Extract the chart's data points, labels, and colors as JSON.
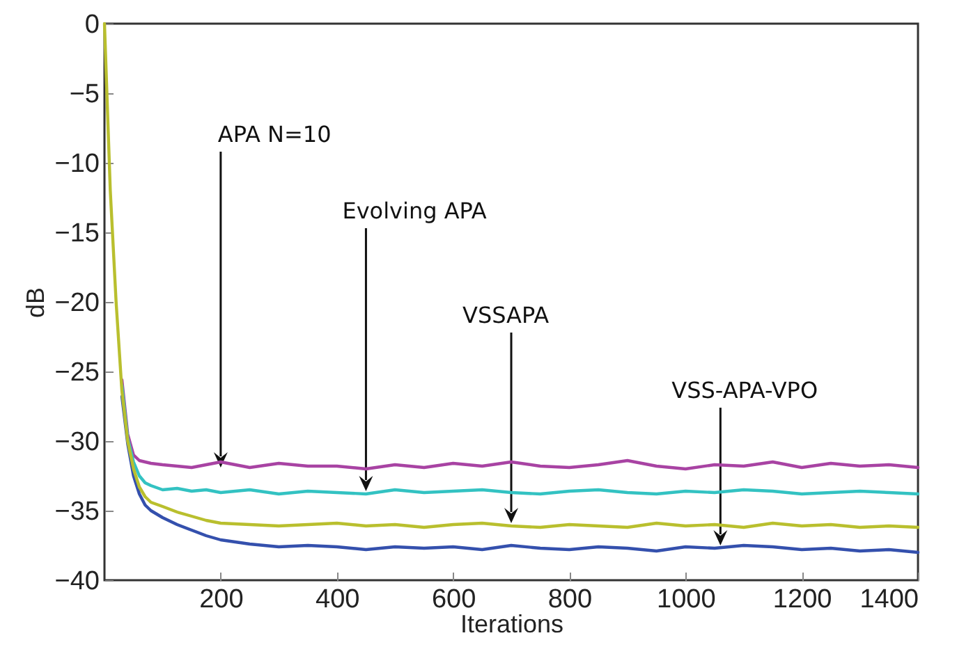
{
  "chart_data": {
    "type": "line",
    "xlabel": "Iterations",
    "ylabel": "dB",
    "x": [
      0,
      10,
      20,
      30,
      40,
      50,
      60,
      70,
      80,
      100,
      125,
      150,
      175,
      200,
      250,
      300,
      350,
      400,
      450,
      500,
      550,
      600,
      650,
      700,
      750,
      800,
      850,
      900,
      950,
      1000,
      1050,
      1100,
      1150,
      1200,
      1250,
      1300,
      1350,
      1400
    ],
    "series": [
      {
        "color": "#a843a3",
        "values": [
          null,
          null,
          null,
          -25.6,
          -29.5,
          -31,
          -31.4,
          -31.5,
          -31.6,
          -31.7,
          -31.8,
          -31.9,
          -31.7,
          -31.5,
          -31.9,
          -31.6,
          -31.8,
          -31.8,
          -32,
          -31.7,
          -31.9,
          -31.6,
          -31.8,
          -31.5,
          -31.8,
          -31.9,
          -31.7,
          -31.4,
          -31.8,
          -32,
          -31.7,
          -31.8,
          -31.5,
          -31.9,
          -31.6,
          -31.8,
          -31.7,
          -31.9
        ]
      },
      {
        "color": "#33c2c2",
        "values": [
          null,
          null,
          null,
          -26,
          -29.8,
          -31.5,
          -32.5,
          -33,
          -33.2,
          -33.5,
          -33.4,
          -33.6,
          -33.5,
          -33.7,
          -33.5,
          -33.8,
          -33.6,
          -33.7,
          -33.8,
          -33.5,
          -33.7,
          -33.6,
          -33.5,
          -33.7,
          -33.8,
          -33.6,
          -33.5,
          -33.7,
          -33.8,
          -33.6,
          -33.7,
          -33.5,
          -33.6,
          -33.8,
          -33.7,
          -33.6,
          -33.7,
          -33.8
        ]
      },
      {
        "color": "#3450ad",
        "values": [
          null,
          null,
          null,
          -26.8,
          -30.2,
          -32.5,
          -33.8,
          -34.6,
          -35,
          -35.5,
          -36,
          -36.4,
          -36.8,
          -37.1,
          -37.4,
          -37.6,
          -37.5,
          -37.6,
          -37.8,
          -37.6,
          -37.7,
          -37.6,
          -37.8,
          -37.5,
          -37.7,
          -37.8,
          -37.6,
          -37.7,
          -37.9,
          -37.6,
          -37.7,
          -37.5,
          -37.6,
          -37.8,
          -37.7,
          -37.9,
          -37.8,
          -38
        ]
      },
      {
        "color": "#b9bf2e",
        "values": [
          0,
          -12,
          -20,
          -26.4,
          -30,
          -32,
          -33.3,
          -34,
          -34.4,
          -34.7,
          -35.1,
          -35.4,
          -35.7,
          -35.9,
          -36,
          -36.1,
          -36,
          -35.9,
          -36.1,
          -36,
          -36.2,
          -36,
          -35.9,
          -36.1,
          -36.2,
          -36,
          -36.1,
          -36.2,
          -35.9,
          -36.1,
          -36,
          -36.2,
          -35.9,
          -36.1,
          -36,
          -36.2,
          -36.1,
          -36.2
        ]
      }
    ],
    "xlim": [
      0,
      1400
    ],
    "xticks": [
      200,
      400,
      600,
      800,
      1000,
      1200,
      1400
    ],
    "ylim": [
      -40,
      0
    ],
    "yticks": [
      -40,
      -35,
      -30,
      -25,
      -20,
      -15,
      -10,
      -5,
      0
    ],
    "grid": false,
    "marker": "none",
    "line_style": "solid",
    "annotations": [
      {
        "text": "APA N=10",
        "x": 200,
        "y": -31.9
      },
      {
        "text": "Evolving APA",
        "x": 450,
        "y": -33.6
      },
      {
        "text": "VSSAPA",
        "x": 700,
        "y": -35.9
      },
      {
        "text": "VSS-APA-VPO",
        "x": 1060,
        "y": -37.5
      }
    ]
  }
}
